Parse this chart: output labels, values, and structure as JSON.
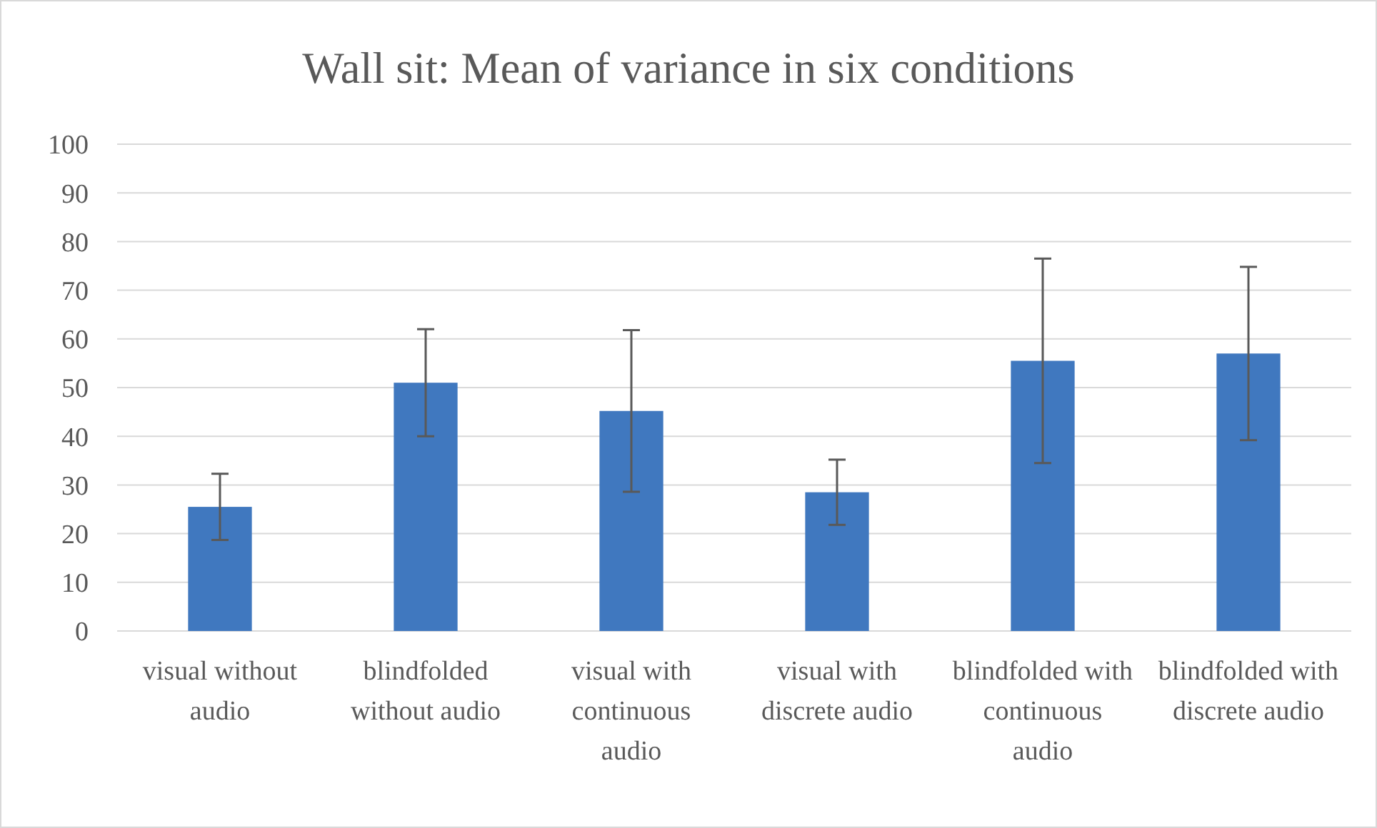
{
  "chart_data": {
    "type": "bar",
    "title": "Wall sit: Mean of variance in six conditions",
    "categories": [
      "visual without audio",
      "blindfolded without audio",
      "visual with continuous audio",
      "visual with discrete audio",
      "blindfolded with continuous audio",
      "blindfolded with discrete audio"
    ],
    "values": [
      25.5,
      51,
      45.2,
      28.5,
      55.5,
      57
    ],
    "errors": [
      6.8,
      11,
      16.6,
      6.7,
      21,
      17.8
    ],
    "color": "#4078bf",
    "ylim": [
      0,
      100
    ],
    "yticks": [
      0,
      10,
      20,
      30,
      40,
      50,
      60,
      70,
      80,
      90,
      100
    ],
    "grid": "y"
  }
}
